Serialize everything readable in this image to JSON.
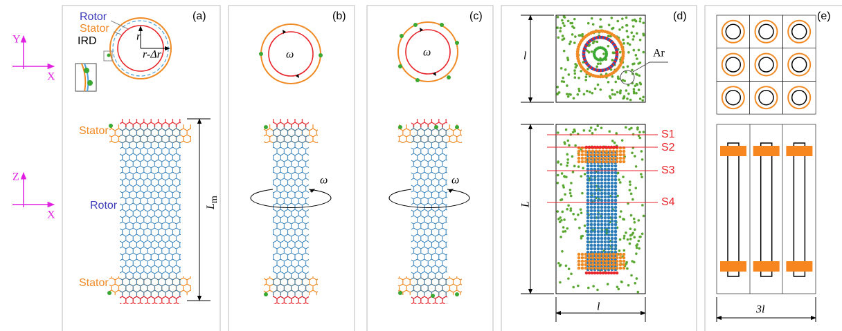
{
  "axes": {
    "top": {
      "vertical": "Y",
      "horizontal": "X"
    },
    "bottom": {
      "vertical": "Z",
      "horizontal": "X"
    }
  },
  "panel_a": {
    "label": "(a)",
    "rotor_top": "Rotor",
    "stator_top": "Stator",
    "ird": "IRD",
    "r": "r",
    "r_minus": "r-Δr",
    "stator_upper": "Stator",
    "rotor": "Rotor",
    "stator_lower": "Stator",
    "length": "L",
    "length_sub": "m"
  },
  "panel_b": {
    "label": "(b)",
    "omega_top": "ω",
    "omega_side": "ω"
  },
  "panel_c": {
    "label": "(c)",
    "omega_top": "ω",
    "omega_side": "ω"
  },
  "panel_d": {
    "label": "(d)",
    "width_top": "l",
    "ar": "Ar",
    "height": "L",
    "sections": [
      "S1",
      "S2",
      "S3",
      "S4"
    ],
    "width_bottom": "l"
  },
  "panel_e": {
    "label": "(e)",
    "width": "3l"
  }
}
